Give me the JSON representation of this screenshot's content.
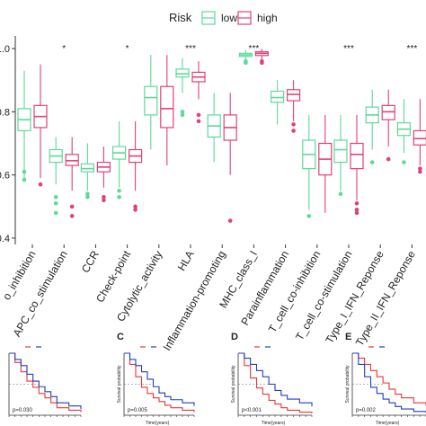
{
  "legend": {
    "title": "Risk",
    "placement": "top-center"
  },
  "colors": {
    "low": "#5ed99a",
    "high": "#e0417a",
    "outlier_low": "#5ed99a",
    "outlier_high": "#e0417a"
  },
  "chart_data": [
    {
      "type": "box",
      "title": "",
      "xlabel": "",
      "ylabel": "",
      "ylim": [
        0.38,
        1.04
      ],
      "yticks": [
        "0.4",
        "0.6",
        "0.8",
        "1.0"
      ],
      "ytick_values": [
        0.4,
        0.6,
        0.8,
        1.0
      ],
      "grid": false,
      "series": [
        {
          "name": "low"
        },
        {
          "name": "high"
        }
      ],
      "categories": [
        {
          "label": "APC_co_inhibition",
          "display": "o_inhibition",
          "sig": "",
          "low": {
            "whislo": 0.59,
            "q1": 0.74,
            "med": 0.775,
            "q3": 0.81,
            "whishi": 0.93,
            "outliers": [
              0.585,
              0.61
            ]
          },
          "high": {
            "whislo": 0.59,
            "q1": 0.75,
            "med": 0.785,
            "q3": 0.82,
            "whishi": 0.95,
            "outliers": [
              0.57
            ]
          }
        },
        {
          "label": "APC_co_stimulation",
          "display": "APC_co_stimulation",
          "sig": "*",
          "low": {
            "whislo": 0.57,
            "q1": 0.64,
            "med": 0.66,
            "q3": 0.68,
            "whishi": 0.72,
            "outliers": [
              0.53,
              0.51,
              0.48
            ]
          },
          "high": {
            "whislo": 0.55,
            "q1": 0.63,
            "med": 0.645,
            "q3": 0.665,
            "whishi": 0.72,
            "outliers": [
              0.5,
              0.47
            ]
          }
        },
        {
          "label": "CCR",
          "display": "CCR",
          "sig": "",
          "low": {
            "whislo": 0.55,
            "q1": 0.61,
            "med": 0.62,
            "q3": 0.635,
            "whishi": 0.7,
            "outliers": [
              0.54,
              0.53
            ]
          },
          "high": {
            "whislo": 0.56,
            "q1": 0.61,
            "med": 0.625,
            "q3": 0.64,
            "whishi": 0.69,
            "outliers": [
              0.53,
              0.52
            ]
          }
        },
        {
          "label": "Check-point",
          "display": "Check-point",
          "sig": "*",
          "low": {
            "whislo": 0.56,
            "q1": 0.65,
            "med": 0.67,
            "q3": 0.69,
            "whishi": 0.77,
            "outliers": [
              0.55,
              0.53
            ]
          },
          "high": {
            "whislo": 0.55,
            "q1": 0.64,
            "med": 0.66,
            "q3": 0.68,
            "whishi": 0.77,
            "outliers": [
              0.5,
              0.49
            ]
          }
        },
        {
          "label": "Cytolytic_activity",
          "display": "Cytolytic_activity",
          "sig": "",
          "low": {
            "whislo": 0.68,
            "q1": 0.79,
            "med": 0.845,
            "q3": 0.88,
            "whishi": 0.98,
            "outliers": []
          },
          "high": {
            "whislo": 0.63,
            "q1": 0.75,
            "med": 0.81,
            "q3": 0.88,
            "whishi": 0.98,
            "outliers": []
          }
        },
        {
          "label": "HLA",
          "display": "HLA",
          "sig": "***",
          "low": {
            "whislo": 0.86,
            "q1": 0.91,
            "med": 0.92,
            "q3": 0.935,
            "whishi": 0.97,
            "outliers": [
              0.8,
              0.79
            ]
          },
          "high": {
            "whislo": 0.84,
            "q1": 0.895,
            "med": 0.91,
            "q3": 0.925,
            "whishi": 0.96,
            "outliers": [
              0.79,
              0.77
            ]
          }
        },
        {
          "label": "Inflammation-promoting",
          "display": "Inflammation-promoting",
          "sig": "",
          "low": {
            "whislo": 0.64,
            "q1": 0.72,
            "med": 0.755,
            "q3": 0.79,
            "whishi": 0.86,
            "outliers": []
          },
          "high": {
            "whislo": 0.6,
            "q1": 0.71,
            "med": 0.75,
            "q3": 0.79,
            "whishi": 0.86,
            "outliers": [
              0.455
            ]
          }
        },
        {
          "label": "MHC_class_I",
          "display": "MHC_class_I",
          "sig": "***",
          "low": {
            "whislo": 0.965,
            "q1": 0.975,
            "med": 0.98,
            "q3": 0.985,
            "whishi": 0.995,
            "outliers": [
              0.96,
              0.955
            ]
          },
          "high": {
            "whislo": 0.965,
            "q1": 0.978,
            "med": 0.985,
            "q3": 0.99,
            "whishi": 0.999,
            "outliers": [
              0.96,
              0.955
            ]
          }
        },
        {
          "label": "Parainflammation",
          "display": "Parainflammation",
          "sig": "",
          "low": {
            "whislo": 0.76,
            "q1": 0.83,
            "med": 0.845,
            "q3": 0.865,
            "whishi": 0.9,
            "outliers": []
          },
          "high": {
            "whislo": 0.77,
            "q1": 0.835,
            "med": 0.855,
            "q3": 0.87,
            "whishi": 0.9,
            "outliers": [
              0.76,
              0.74
            ]
          }
        },
        {
          "label": "T_cell_co-inhibition",
          "display": "T_cell_co-inhibition",
          "sig": "",
          "low": {
            "whislo": 0.49,
            "q1": 0.62,
            "med": 0.665,
            "q3": 0.71,
            "whishi": 0.79,
            "outliers": [
              0.47
            ]
          },
          "high": {
            "whislo": 0.48,
            "q1": 0.6,
            "med": 0.65,
            "q3": 0.7,
            "whishi": 0.79,
            "outliers": []
          }
        },
        {
          "label": "T_cell_co-stimulation",
          "display": "T_cell_co-stimulation",
          "sig": "***",
          "low": {
            "whislo": 0.55,
            "q1": 0.64,
            "med": 0.68,
            "q3": 0.71,
            "whishi": 0.79,
            "outliers": [
              0.54
            ]
          },
          "high": {
            "whislo": 0.52,
            "q1": 0.62,
            "med": 0.665,
            "q3": 0.7,
            "whishi": 0.79,
            "outliers": [
              0.51,
              0.49,
              0.48
            ]
          }
        },
        {
          "label": "Type_I_IFN_Reponse",
          "display": "Type_I_IFN_Reponse",
          "sig": "",
          "low": {
            "whislo": 0.68,
            "q1": 0.765,
            "med": 0.79,
            "q3": 0.815,
            "whishi": 0.87,
            "outliers": [
              0.64
            ]
          },
          "high": {
            "whislo": 0.69,
            "q1": 0.775,
            "med": 0.8,
            "q3": 0.82,
            "whishi": 0.87,
            "outliers": [
              0.65
            ]
          }
        },
        {
          "label": "Type_II_IFN_Reponse",
          "display": "Type_II_IFN_Reponse",
          "sig": "***",
          "low": {
            "whislo": 0.67,
            "q1": 0.725,
            "med": 0.745,
            "q3": 0.765,
            "whishi": 0.84,
            "outliers": [
              0.64
            ]
          },
          "high": {
            "whislo": 0.63,
            "q1": 0.695,
            "med": 0.715,
            "q3": 0.74,
            "whishi": 0.84,
            "outliers": [
              0.62,
              0.61
            ]
          }
        }
      ]
    },
    {
      "type": "line",
      "panel": "",
      "step": true,
      "xlabel": "",
      "ylabel": "",
      "pvalue": "p=0.030",
      "series": [
        {
          "name": "high",
          "x": [
            0,
            1,
            2,
            3,
            4,
            5,
            6,
            7,
            8,
            10,
            12
          ],
          "y": [
            1,
            0.85,
            0.7,
            0.55,
            0.45,
            0.35,
            0.28,
            0.2,
            0.12,
            0.08,
            0.05
          ]
        },
        {
          "name": "low",
          "x": [
            0,
            1,
            2,
            3,
            4,
            5,
            6,
            7,
            8,
            10,
            12
          ],
          "y": [
            1,
            0.9,
            0.8,
            0.66,
            0.55,
            0.46,
            0.38,
            0.3,
            0.2,
            0.15,
            0.1
          ]
        }
      ]
    },
    {
      "type": "line",
      "panel": "C",
      "step": true,
      "xlabel": "Time(years)",
      "ylabel": "Survival probability",
      "pvalue": "p=0.005",
      "series": [
        {
          "name": "high",
          "x": [
            0,
            1,
            2,
            3,
            4,
            5,
            6,
            7,
            8,
            10,
            12
          ],
          "y": [
            1,
            0.82,
            0.62,
            0.45,
            0.35,
            0.28,
            0.22,
            0.16,
            0.12,
            0.08,
            0.05
          ]
        },
        {
          "name": "low",
          "x": [
            0,
            1,
            2,
            3,
            4,
            5,
            6,
            7,
            8,
            10,
            12
          ],
          "y": [
            1,
            0.9,
            0.8,
            0.7,
            0.58,
            0.46,
            0.36,
            0.3,
            0.25,
            0.2,
            0.15
          ]
        }
      ]
    },
    {
      "type": "line",
      "panel": "D",
      "step": true,
      "xlabel": "Time(years)",
      "ylabel": "Survival probability",
      "pvalue": "p<0.001",
      "series": [
        {
          "name": "high",
          "x": [
            0,
            1,
            2,
            3,
            4,
            5,
            6,
            7,
            8,
            10,
            12
          ],
          "y": [
            1,
            0.8,
            0.6,
            0.44,
            0.34,
            0.24,
            0.18,
            0.12,
            0.08,
            0.05,
            0.03
          ]
        },
        {
          "name": "low",
          "x": [
            0,
            1,
            2,
            3,
            4,
            5,
            6,
            7,
            8,
            10,
            12
          ],
          "y": [
            1,
            0.92,
            0.82,
            0.72,
            0.62,
            0.5,
            0.4,
            0.32,
            0.26,
            0.2,
            0.14
          ]
        }
      ]
    },
    {
      "type": "line",
      "panel": "E",
      "step": true,
      "xlabel": "Time(years)",
      "ylabel": "Survival probability",
      "pvalue": "p=0.002",
      "series": [
        {
          "name": "high",
          "x": [
            0,
            1,
            2,
            3,
            4,
            5,
            6,
            7,
            8,
            10,
            12
          ],
          "y": [
            1,
            0.92,
            0.82,
            0.72,
            0.62,
            0.52,
            0.42,
            0.34,
            0.28,
            0.2,
            0.15
          ]
        },
        {
          "name": "low",
          "x": [
            0,
            1,
            2,
            3,
            4,
            5,
            6,
            7,
            8,
            10,
            12
          ],
          "y": [
            1,
            0.82,
            0.62,
            0.45,
            0.35,
            0.26,
            0.2,
            0.14,
            0.1,
            0.06,
            0.04
          ]
        }
      ]
    }
  ]
}
